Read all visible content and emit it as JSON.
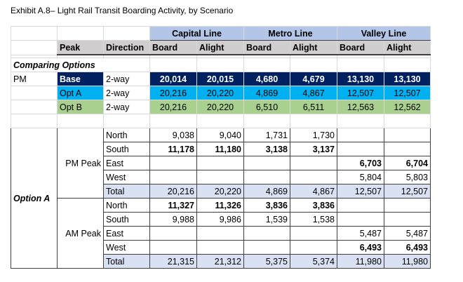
{
  "title": "Exhibit A.8– Light Rail Transit Boarding Activity, by Scenario",
  "header": {
    "lines": [
      "Capital Line",
      "Metro Line",
      "Valley Line"
    ],
    "peak": "Peak",
    "direction": "Direction",
    "sub": [
      "Board",
      "Alight",
      "Board",
      "Alight",
      "Board",
      "Alight"
    ]
  },
  "comparing": {
    "label": "Comparing Options",
    "period": "PM",
    "rows": [
      {
        "option": "Base",
        "direction": "2-way",
        "values": [
          "20,014",
          "20,015",
          "4,680",
          "4,679",
          "13,130",
          "13,130"
        ]
      },
      {
        "option": "Opt A",
        "direction": "2-way",
        "values": [
          "20,216",
          "20,220",
          "4,869",
          "4,867",
          "12,507",
          "12,507"
        ]
      },
      {
        "option": "Opt B",
        "direction": "2-way",
        "values": [
          "20,216",
          "20,220",
          "6,510",
          "6,511",
          "12,563",
          "12,562"
        ]
      }
    ]
  },
  "colors": {
    "base": "#002060",
    "opt_a": "#00b0f0",
    "opt_b": "#a9d08e",
    "line_header": "#b4c6e7",
    "sub_header": "#d0cece",
    "total": "#d9e1f2"
  },
  "option_a": {
    "label": "Option A",
    "peaks": [
      {
        "label": "PM Peak",
        "rows": [
          {
            "direction": "North",
            "values": [
              "9,038",
              "9,040",
              "1,731",
              "1,730",
              "",
              ""
            ],
            "bold": false
          },
          {
            "direction": "South",
            "values": [
              "11,178",
              "11,180",
              "3,138",
              "3,137",
              "",
              ""
            ],
            "bold": true
          },
          {
            "direction": "East",
            "values": [
              "",
              "",
              "",
              "",
              "6,703",
              "6,704"
            ],
            "bold": true
          },
          {
            "direction": "West",
            "values": [
              "",
              "",
              "",
              "",
              "5,804",
              "5,803"
            ],
            "bold": false
          },
          {
            "direction": "Total",
            "values": [
              "20,216",
              "20,220",
              "4,869",
              "4,867",
              "12,507",
              "12,507"
            ],
            "bold": false,
            "total": true
          }
        ]
      },
      {
        "label": "AM Peak",
        "rows": [
          {
            "direction": "North",
            "values": [
              "11,327",
              "11,326",
              "3,836",
              "3,836",
              "",
              ""
            ],
            "bold": true
          },
          {
            "direction": "South",
            "values": [
              "9,988",
              "9,986",
              "1,539",
              "1,538",
              "",
              ""
            ],
            "bold": false
          },
          {
            "direction": "East",
            "values": [
              "",
              "",
              "",
              "",
              "5,487",
              "5,487"
            ],
            "bold": false
          },
          {
            "direction": "West",
            "values": [
              "",
              "",
              "",
              "",
              "6,493",
              "6,493"
            ],
            "bold": true
          },
          {
            "direction": "Total",
            "values": [
              "21,315",
              "21,312",
              "5,375",
              "5,374",
              "11,980",
              "11,980"
            ],
            "bold": false,
            "total": true
          }
        ]
      }
    ]
  }
}
